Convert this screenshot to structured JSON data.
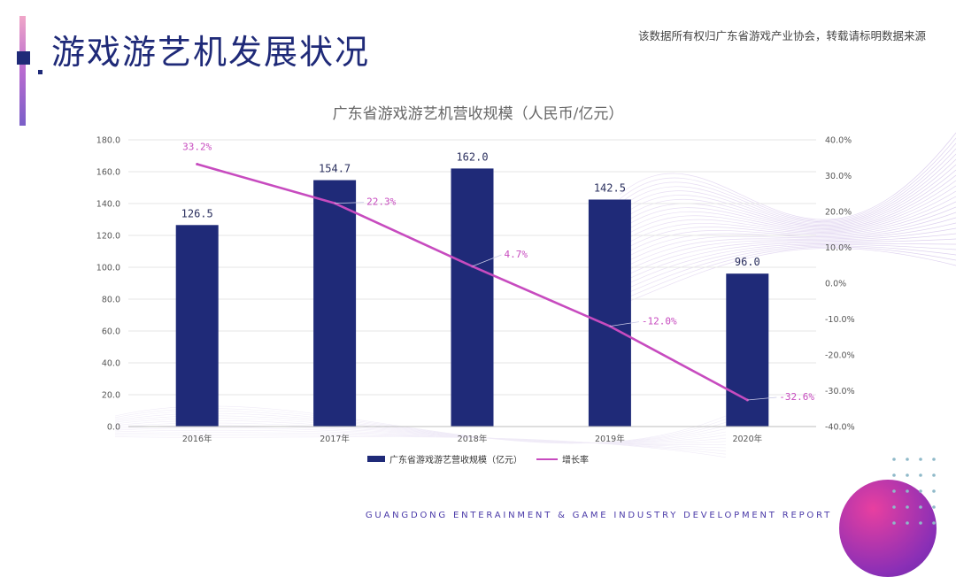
{
  "page": {
    "title": "游戏游艺机发展状况",
    "copyright": "该数据所有权归广东省游戏产业协会，转载请标明数据来源",
    "footer": "GUANGDONG ENTERAINMENT & GAME INDUSTRY DEVELOPMENT REPORT"
  },
  "colors": {
    "bar": "#1f2a78",
    "line": "#c74bbf",
    "accent": "#1f2a78"
  },
  "chart_data": {
    "type": "bar",
    "title": "广东省游戏游艺机营收规模（人民币/亿元）",
    "categories": [
      "2016年",
      "2017年",
      "2018年",
      "2019年",
      "2020年"
    ],
    "series": [
      {
        "name": "广东省游戏游艺营收规模（亿元）",
        "type": "bar",
        "axis": "left",
        "values": [
          126.5,
          154.7,
          162.0,
          142.5,
          96.0
        ],
        "labels": [
          "126.5",
          "154.7",
          "162.0",
          "142.5",
          "96.0"
        ]
      },
      {
        "name": "增长率",
        "type": "line",
        "axis": "right",
        "values": [
          33.2,
          22.3,
          4.7,
          -12.0,
          -32.6
        ],
        "labels": [
          "33.2%",
          "22.3%",
          "4.7%",
          "-12.0%",
          "-32.6%"
        ]
      }
    ],
    "y_left": {
      "min": 0,
      "max": 180,
      "step": 20,
      "tick_labels": [
        "0.0",
        "20.0",
        "40.0",
        "60.0",
        "80.0",
        "100.0",
        "120.0",
        "140.0",
        "160.0",
        "180.0"
      ]
    },
    "y_right": {
      "min": -40,
      "max": 40,
      "step": 10,
      "tick_labels": [
        "-40.0%",
        "-30.0%",
        "-20.0%",
        "-10.0%",
        "0.0%",
        "10.0%",
        "20.0%",
        "30.0%",
        "40.0%"
      ]
    },
    "grid": true,
    "legend": "bottom"
  }
}
